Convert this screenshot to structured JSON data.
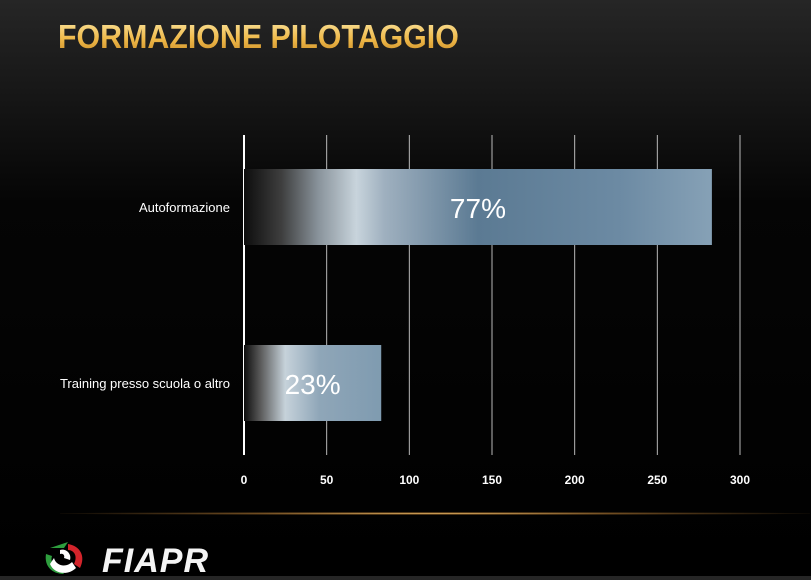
{
  "slide": {
    "title": "FORMAZIONE PILOTAGGIO"
  },
  "logo": {
    "text": "FIAPR"
  },
  "chart_data": {
    "type": "bar",
    "orientation": "horizontal",
    "categories": [
      "Autoformazione",
      "Training presso scuola o altro"
    ],
    "values": [
      283,
      83
    ],
    "data_labels": [
      "77%",
      "23%"
    ],
    "xlim": [
      0,
      300
    ],
    "xticks": [
      "0",
      "50",
      "100",
      "150",
      "200",
      "250",
      "300"
    ],
    "grid": true,
    "legend": "none"
  },
  "colors": {
    "title_gold": "#f1c15a",
    "bar_light": "#b8c8d4",
    "bar_blue": "#5d7e99",
    "gridline": "#d8d8d8",
    "label_text": "#ffffff"
  }
}
